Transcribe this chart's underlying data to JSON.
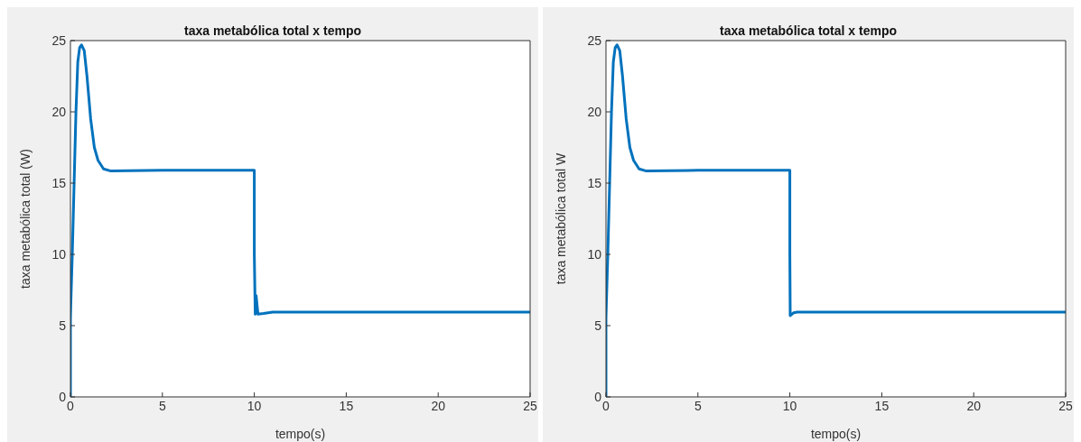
{
  "chart_data": [
    {
      "type": "line",
      "title": "taxa metabólica total x tempo",
      "xlabel": "tempo(s)",
      "ylabel": "taxa metabólica total (W)",
      "xlim": [
        0,
        25
      ],
      "xticks": [
        0,
        5,
        10,
        15,
        20,
        25
      ],
      "ylim": [
        0,
        25
      ],
      "yticks": [
        0,
        5,
        10,
        15,
        20,
        25
      ],
      "series": [
        {
          "color": "#0072bd",
          "x": [
            0,
            0,
            0.02,
            0.1,
            0.2,
            0.3,
            0.4,
            0.5,
            0.6,
            0.75,
            0.9,
            1.1,
            1.3,
            1.5,
            1.8,
            2.2,
            5,
            10,
            10,
            10.05,
            10.1,
            10.2,
            10.5,
            11,
            15,
            20,
            25
          ],
          "values": [
            0,
            5.5,
            6.5,
            10,
            15,
            20,
            23.5,
            24.5,
            24.7,
            24.3,
            22.5,
            19.5,
            17.5,
            16.6,
            16,
            15.85,
            15.9,
            15.9,
            10,
            5.8,
            7.1,
            5.8,
            5.85,
            5.95,
            5.95,
            5.95,
            5.95
          ]
        }
      ]
    },
    {
      "type": "line",
      "title": "taxa metabólica total x tempo",
      "xlabel": "tempo(s)",
      "ylabel": "taxa metabólica total W",
      "xlim": [
        0,
        25
      ],
      "xticks": [
        0,
        5,
        10,
        15,
        20,
        25
      ],
      "ylim": [
        0,
        25
      ],
      "yticks": [
        0,
        5,
        10,
        15,
        20,
        25
      ],
      "series": [
        {
          "color": "#0072bd",
          "x": [
            0,
            0,
            0.02,
            0.1,
            0.2,
            0.3,
            0.4,
            0.5,
            0.6,
            0.75,
            0.9,
            1.1,
            1.3,
            1.5,
            1.8,
            2.2,
            5,
            10,
            10,
            10.02,
            10.2,
            10.4,
            11,
            15,
            20,
            25
          ],
          "values": [
            0,
            5.5,
            6.5,
            10,
            15,
            20,
            23.5,
            24.5,
            24.7,
            24.3,
            22.5,
            19.5,
            17.5,
            16.6,
            16,
            15.85,
            15.9,
            15.9,
            10,
            5.7,
            5.9,
            5.95,
            5.95,
            5.95,
            5.95,
            5.95
          ]
        }
      ]
    }
  ]
}
